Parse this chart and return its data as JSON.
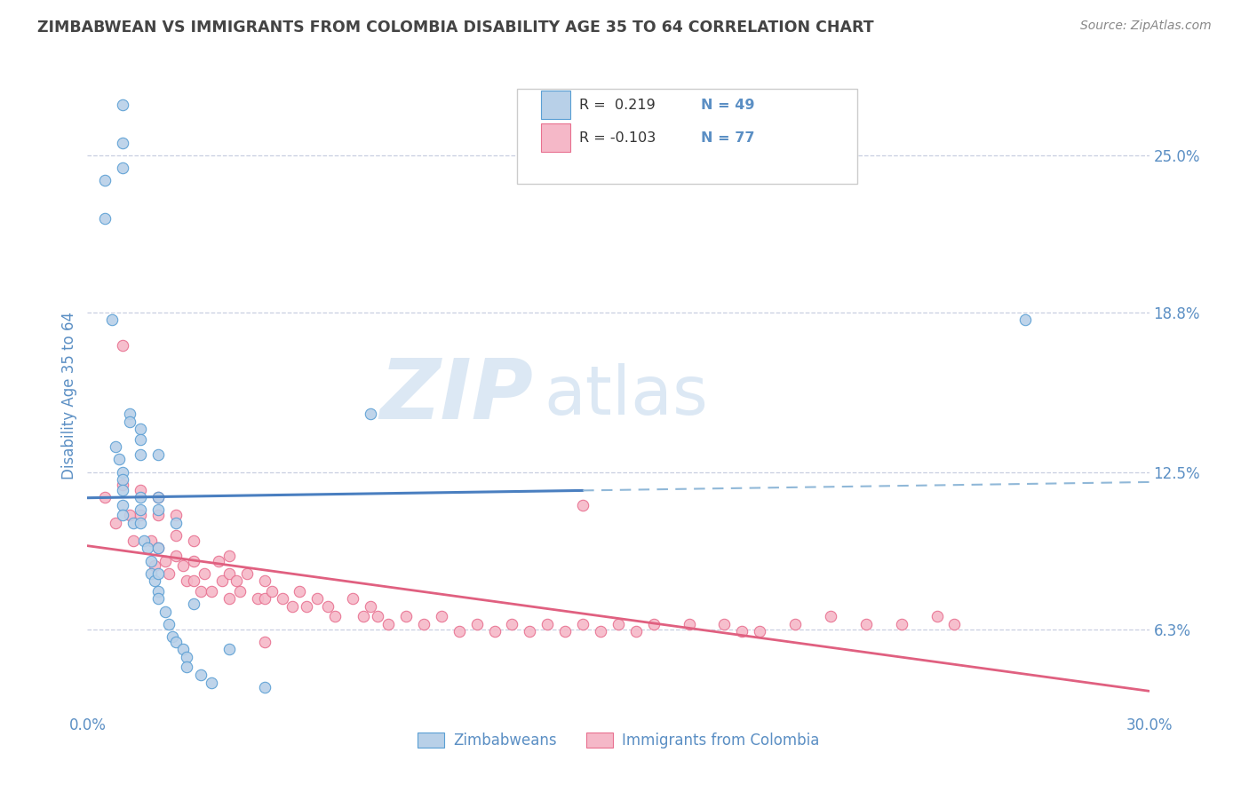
{
  "title": "ZIMBABWEAN VS IMMIGRANTS FROM COLOMBIA DISABILITY AGE 35 TO 64 CORRELATION CHART",
  "source": "Source: ZipAtlas.com",
  "ylabel": "Disability Age 35 to 64",
  "xlim": [
    0.0,
    0.3
  ],
  "ylim": [
    0.03,
    0.28
  ],
  "yticks": [
    0.063,
    0.125,
    0.188,
    0.25
  ],
  "ytick_labels": [
    "6.3%",
    "12.5%",
    "18.8%",
    "25.0%"
  ],
  "xticks": [
    0.0,
    0.05,
    0.1,
    0.15,
    0.2,
    0.25,
    0.3
  ],
  "xtick_labels": [
    "0.0%",
    "",
    "",
    "",
    "",
    "",
    "30.0%"
  ],
  "legend_r_blue": "R =  0.219",
  "legend_n_blue": "N = 49",
  "legend_r_pink": "R = -0.103",
  "legend_n_pink": "N = 77",
  "blue_fill": "#b8d0e8",
  "blue_edge": "#5a9fd4",
  "pink_fill": "#f5b8c8",
  "pink_edge": "#e87090",
  "blue_line": "#4a7fc0",
  "pink_line": "#e06080",
  "blue_dash": "#90b8d8",
  "tick_color": "#5b8fc4",
  "label_color": "#5b8fc4",
  "title_color": "#444444",
  "source_color": "#888888",
  "watermark_color": "#dce8f4",
  "background": "#ffffff",
  "grid_color": "#c8cfe0",
  "blue_x": [
    0.005,
    0.005,
    0.007,
    0.008,
    0.009,
    0.01,
    0.01,
    0.01,
    0.01,
    0.01,
    0.01,
    0.01,
    0.01,
    0.012,
    0.012,
    0.013,
    0.015,
    0.015,
    0.015,
    0.015,
    0.015,
    0.015,
    0.016,
    0.017,
    0.018,
    0.018,
    0.019,
    0.02,
    0.02,
    0.02,
    0.02,
    0.02,
    0.02,
    0.02,
    0.022,
    0.023,
    0.024,
    0.025,
    0.025,
    0.027,
    0.028,
    0.028,
    0.03,
    0.032,
    0.035,
    0.04,
    0.05,
    0.265,
    0.08
  ],
  "blue_y": [
    0.24,
    0.225,
    0.185,
    0.135,
    0.13,
    0.27,
    0.255,
    0.245,
    0.125,
    0.122,
    0.118,
    0.112,
    0.108,
    0.148,
    0.145,
    0.105,
    0.142,
    0.138,
    0.132,
    0.115,
    0.11,
    0.105,
    0.098,
    0.095,
    0.09,
    0.085,
    0.082,
    0.132,
    0.115,
    0.11,
    0.095,
    0.085,
    0.078,
    0.075,
    0.07,
    0.065,
    0.06,
    0.105,
    0.058,
    0.055,
    0.052,
    0.048,
    0.073,
    0.045,
    0.042,
    0.055,
    0.04,
    0.185,
    0.148
  ],
  "pink_x": [
    0.005,
    0.008,
    0.01,
    0.01,
    0.012,
    0.013,
    0.015,
    0.015,
    0.018,
    0.019,
    0.02,
    0.02,
    0.02,
    0.022,
    0.023,
    0.025,
    0.025,
    0.025,
    0.027,
    0.028,
    0.03,
    0.03,
    0.03,
    0.032,
    0.033,
    0.035,
    0.037,
    0.038,
    0.04,
    0.04,
    0.04,
    0.042,
    0.043,
    0.045,
    0.048,
    0.05,
    0.05,
    0.052,
    0.055,
    0.058,
    0.06,
    0.062,
    0.065,
    0.068,
    0.07,
    0.075,
    0.078,
    0.08,
    0.082,
    0.085,
    0.09,
    0.095,
    0.1,
    0.105,
    0.11,
    0.115,
    0.12,
    0.125,
    0.13,
    0.135,
    0.14,
    0.145,
    0.15,
    0.155,
    0.16,
    0.17,
    0.18,
    0.185,
    0.19,
    0.2,
    0.21,
    0.22,
    0.23,
    0.24,
    0.245,
    0.05,
    0.14
  ],
  "pink_y": [
    0.115,
    0.105,
    0.12,
    0.175,
    0.108,
    0.098,
    0.118,
    0.108,
    0.098,
    0.088,
    0.115,
    0.108,
    0.095,
    0.09,
    0.085,
    0.108,
    0.1,
    0.092,
    0.088,
    0.082,
    0.098,
    0.09,
    0.082,
    0.078,
    0.085,
    0.078,
    0.09,
    0.082,
    0.092,
    0.085,
    0.075,
    0.082,
    0.078,
    0.085,
    0.075,
    0.082,
    0.075,
    0.078,
    0.075,
    0.072,
    0.078,
    0.072,
    0.075,
    0.072,
    0.068,
    0.075,
    0.068,
    0.072,
    0.068,
    0.065,
    0.068,
    0.065,
    0.068,
    0.062,
    0.065,
    0.062,
    0.065,
    0.062,
    0.065,
    0.062,
    0.065,
    0.062,
    0.065,
    0.062,
    0.065,
    0.065,
    0.065,
    0.062,
    0.062,
    0.065,
    0.068,
    0.065,
    0.065,
    0.068,
    0.065,
    0.058,
    0.112
  ]
}
